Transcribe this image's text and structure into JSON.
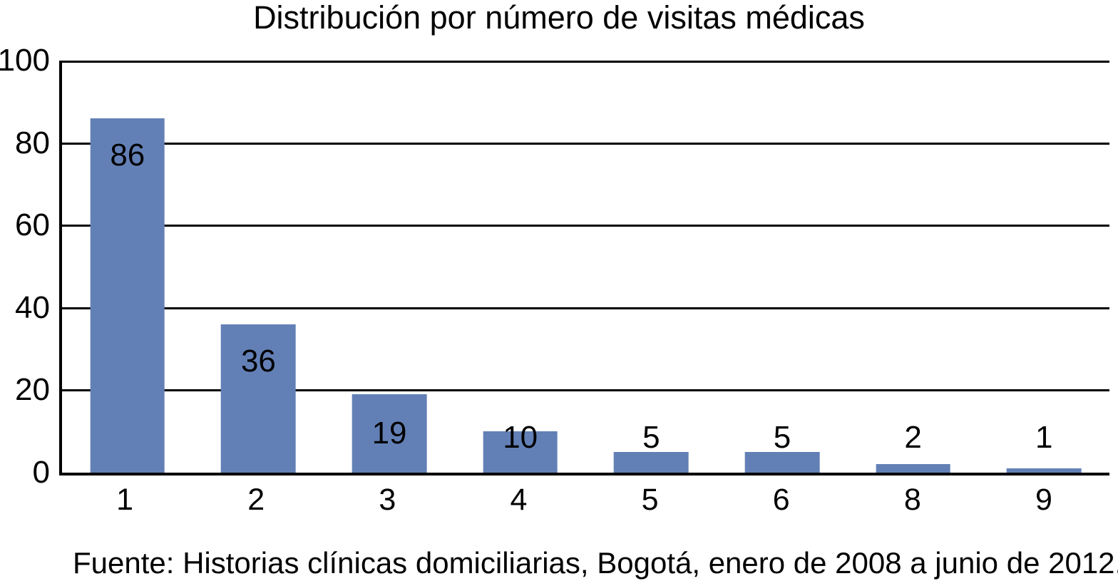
{
  "chart_data": {
    "type": "bar",
    "title": "Distribución por número de visitas médicas",
    "categories": [
      "1",
      "2",
      "3",
      "4",
      "5",
      "6",
      "8",
      "9"
    ],
    "values": [
      86,
      36,
      19,
      10,
      5,
      5,
      2,
      1
    ],
    "data_labels": [
      "86",
      "36",
      "19",
      "10",
      "5",
      "5",
      "2",
      "1"
    ],
    "xlabel": "",
    "ylabel": "",
    "ylim": [
      0,
      100
    ],
    "y_ticks": [
      0,
      20,
      40,
      60,
      80,
      100
    ],
    "grid": "horizontal-on",
    "legend": "none",
    "bar_color": "#6380b6",
    "axis_color": "#000000",
    "text_color": "#000000",
    "source": "Fuente: Historias clínicas domiciliarias, Bogotá, enero de 2008 a junio de 2012."
  }
}
